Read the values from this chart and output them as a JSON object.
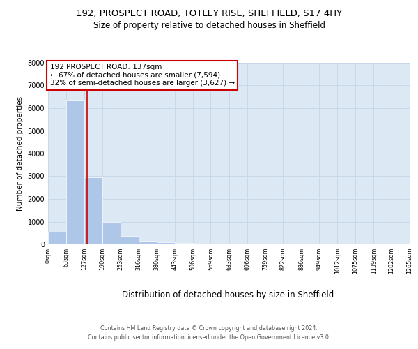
{
  "title_line1": "192, PROSPECT ROAD, TOTLEY RISE, SHEFFIELD, S17 4HY",
  "title_line2": "Size of property relative to detached houses in Sheffield",
  "xlabel": "Distribution of detached houses by size in Sheffield",
  "ylabel": "Number of detached properties",
  "bar_edges": [
    0,
    63,
    127,
    190,
    253,
    316,
    380,
    443,
    506,
    569,
    633,
    696,
    759,
    822,
    886,
    949,
    1012,
    1075,
    1139,
    1202,
    1265
  ],
  "bar_heights": [
    550,
    6380,
    2950,
    970,
    370,
    160,
    90,
    60,
    0,
    0,
    0,
    0,
    0,
    0,
    0,
    0,
    0,
    0,
    0,
    0
  ],
  "bar_color": "#aec6e8",
  "property_line_x": 137,
  "property_line_color": "#cc0000",
  "ylim": [
    0,
    8000
  ],
  "yticks": [
    0,
    1000,
    2000,
    3000,
    4000,
    5000,
    6000,
    7000,
    8000
  ],
  "xtick_labels": [
    "0sqm",
    "63sqm",
    "127sqm",
    "190sqm",
    "253sqm",
    "316sqm",
    "380sqm",
    "443sqm",
    "506sqm",
    "569sqm",
    "633sqm",
    "696sqm",
    "759sqm",
    "822sqm",
    "886sqm",
    "949sqm",
    "1012sqm",
    "1075sqm",
    "1139sqm",
    "1202sqm",
    "1265sqm"
  ],
  "annotation_title": "192 PROSPECT ROAD: 137sqm",
  "annotation_line1": "← 67% of detached houses are smaller (7,594)",
  "annotation_line2": "32% of semi-detached houses are larger (3,627) →",
  "annotation_box_facecolor": "#ffffff",
  "annotation_box_edgecolor": "#cc0000",
  "grid_color": "#c8d8e8",
  "background_color": "#dce8f4",
  "footer_line1": "Contains HM Land Registry data © Crown copyright and database right 2024.",
  "footer_line2": "Contains public sector information licensed under the Open Government Licence v3.0."
}
